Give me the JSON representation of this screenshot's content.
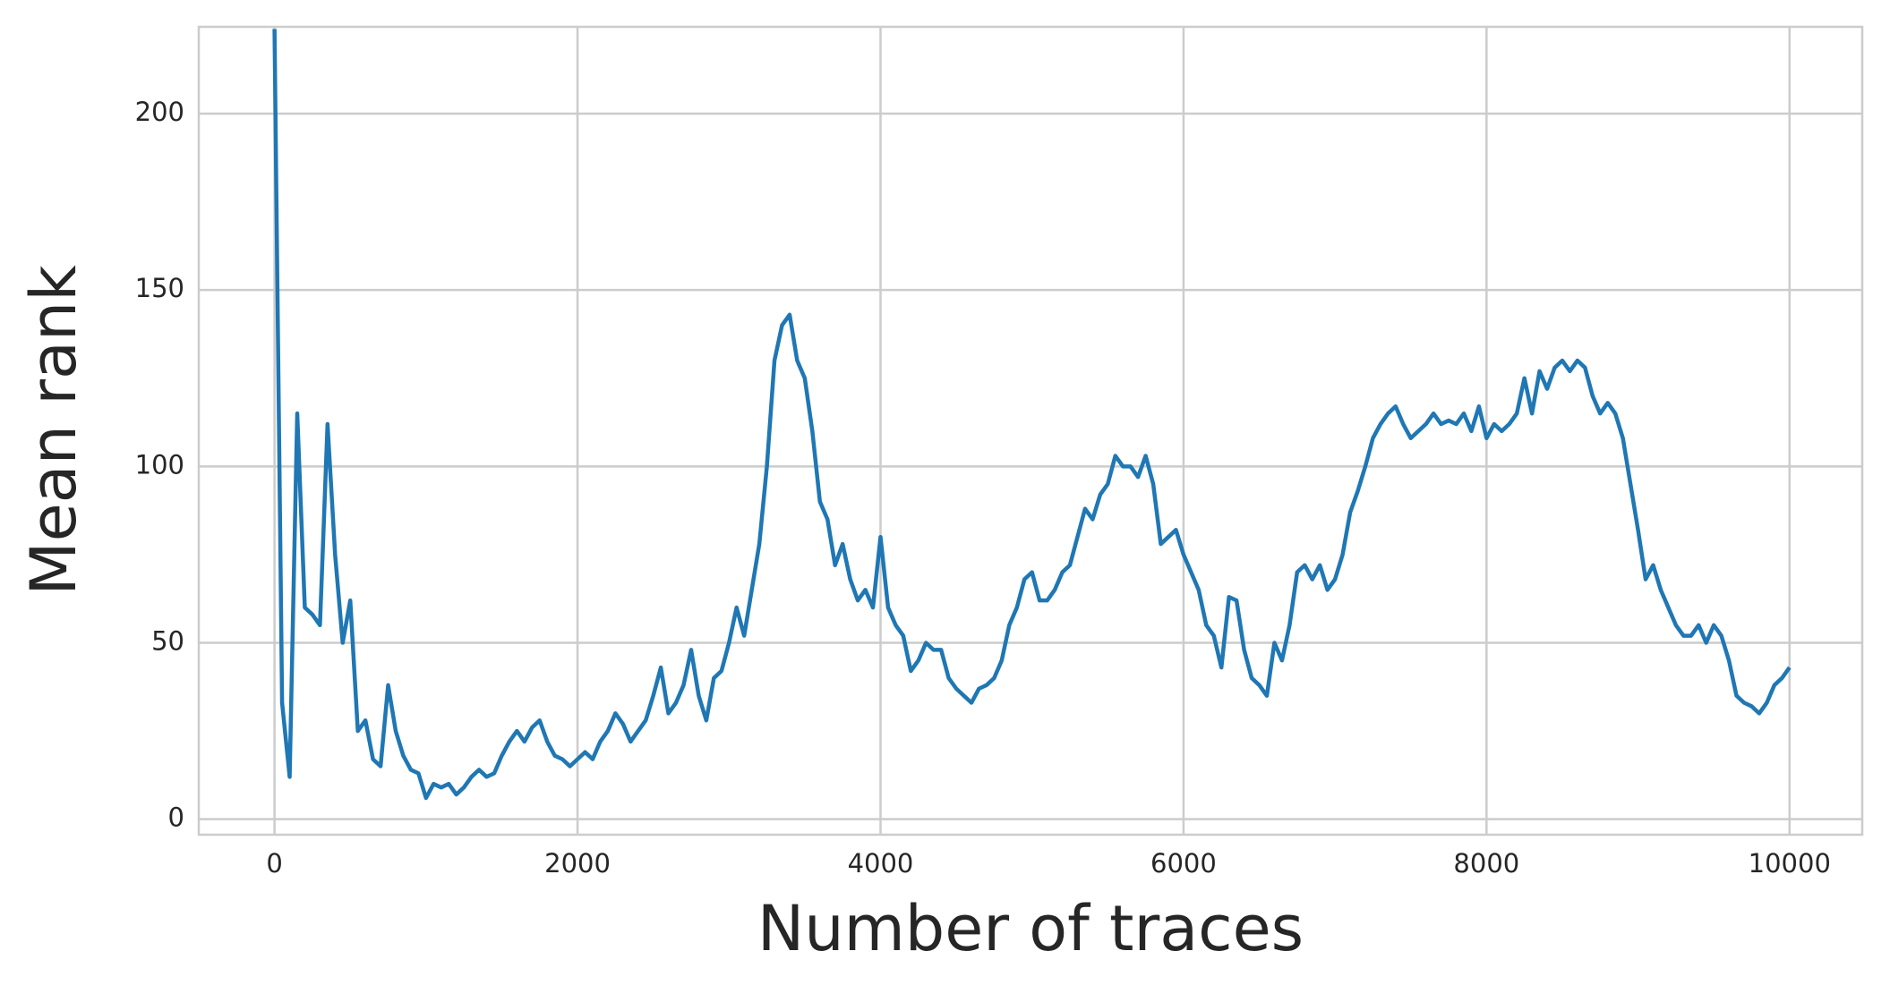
{
  "chart_data": {
    "type": "line",
    "x_label": "Number of traces",
    "y_label": "Mean rank",
    "x": [
      0,
      50,
      100,
      150,
      200,
      250,
      300,
      350,
      400,
      450,
      500,
      550,
      600,
      650,
      700,
      750,
      800,
      850,
      900,
      950,
      1000,
      1050,
      1100,
      1150,
      1200,
      1250,
      1300,
      1350,
      1400,
      1450,
      1500,
      1550,
      1600,
      1650,
      1700,
      1750,
      1800,
      1850,
      1900,
      1950,
      2000,
      2050,
      2100,
      2150,
      2200,
      2250,
      2300,
      2350,
      2400,
      2450,
      2500,
      2550,
      2600,
      2650,
      2700,
      2750,
      2800,
      2850,
      2900,
      2950,
      3000,
      3050,
      3100,
      3150,
      3200,
      3250,
      3300,
      3350,
      3400,
      3450,
      3500,
      3550,
      3600,
      3650,
      3700,
      3750,
      3800,
      3850,
      3900,
      3950,
      4000,
      4050,
      4100,
      4150,
      4200,
      4250,
      4300,
      4350,
      4400,
      4450,
      4500,
      4550,
      4600,
      4650,
      4700,
      4750,
      4800,
      4850,
      4900,
      4950,
      5000,
      5050,
      5100,
      5150,
      5200,
      5250,
      5300,
      5350,
      5400,
      5450,
      5500,
      5550,
      5600,
      5650,
      5700,
      5750,
      5800,
      5850,
      5900,
      5950,
      6000,
      6050,
      6100,
      6150,
      6200,
      6250,
      6300,
      6350,
      6400,
      6450,
      6500,
      6550,
      6600,
      6650,
      6700,
      6750,
      6800,
      6850,
      6900,
      6950,
      7000,
      7050,
      7100,
      7150,
      7200,
      7250,
      7300,
      7350,
      7400,
      7450,
      7500,
      7550,
      7600,
      7650,
      7700,
      7750,
      7800,
      7850,
      7900,
      7950,
      8000,
      8050,
      8100,
      8150,
      8200,
      8250,
      8300,
      8350,
      8400,
      8450,
      8500,
      8550,
      8600,
      8650,
      8700,
      8750,
      8800,
      8850,
      8900,
      8950,
      9000,
      9050,
      9100,
      9150,
      9200,
      9250,
      9300,
      9350,
      9400,
      9450,
      9500,
      9550,
      9600,
      9650,
      9700,
      9750,
      9800,
      9850,
      9900,
      9950,
      10000
    ],
    "series": [
      {
        "color": "#1f77b4",
        "values": [
          224,
          33,
          12,
          115,
          60,
          58,
          55,
          112,
          75,
          50,
          62,
          25,
          28,
          17,
          15,
          38,
          25,
          18,
          14,
          13,
          6,
          10,
          9,
          10,
          7,
          9,
          12,
          14,
          12,
          13,
          18,
          22,
          25,
          22,
          26,
          28,
          22,
          18,
          17,
          15,
          17,
          19,
          17,
          22,
          25,
          30,
          27,
          22,
          25,
          28,
          35,
          43,
          30,
          33,
          38,
          48,
          35,
          28,
          40,
          42,
          50,
          60,
          52,
          65,
          78,
          100,
          130,
          140,
          143,
          130,
          125,
          110,
          90,
          85,
          72,
          78,
          68,
          62,
          65,
          60,
          80,
          60,
          55,
          52,
          42,
          45,
          50,
          48,
          48,
          40,
          37,
          35,
          33,
          37,
          38,
          40,
          45,
          55,
          60,
          68,
          70,
          62,
          62,
          65,
          70,
          72,
          80,
          88,
          85,
          92,
          95,
          103,
          100,
          100,
          97,
          103,
          95,
          78,
          80,
          82,
          75,
          70,
          65,
          55,
          52,
          43,
          63,
          62,
          48,
          40,
          38,
          35,
          50,
          45,
          55,
          70,
          72,
          68,
          72,
          65,
          68,
          75,
          87,
          93,
          100,
          108,
          112,
          115,
          117,
          112,
          108,
          110,
          112,
          115,
          112,
          113,
          112,
          115,
          110,
          117,
          108,
          112,
          110,
          112,
          115,
          125,
          115,
          127,
          122,
          128,
          130,
          127,
          130,
          128,
          120,
          115,
          118,
          115,
          108,
          95,
          82,
          68,
          72,
          65,
          60,
          55,
          52,
          52,
          55,
          50,
          55,
          52,
          45,
          35,
          33,
          32,
          30,
          33,
          38,
          40,
          43
        ]
      }
    ],
    "xlim": [
      -500,
      10480
    ],
    "ylim": [
      -4.4,
      224.6
    ],
    "xticks": [
      0,
      2000,
      4000,
      6000,
      8000,
      10000
    ],
    "yticks": [
      0,
      50,
      100,
      150,
      200
    ],
    "grid": true
  }
}
